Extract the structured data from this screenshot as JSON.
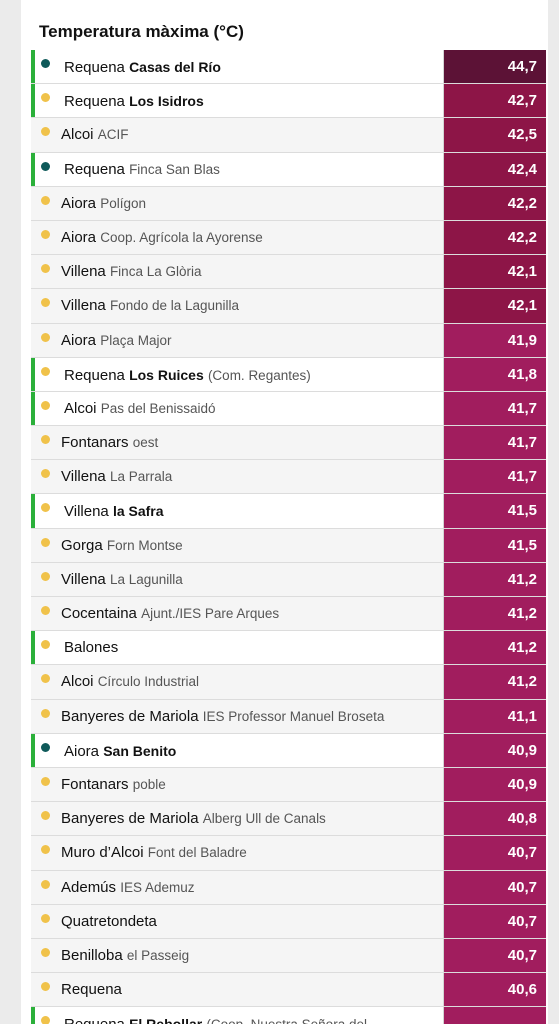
{
  "title": "Temperatura màxima (°C)",
  "colors": {
    "highlight_bar": "#2bb03a",
    "dot_yellow": "#f0c24a",
    "dot_teal": "#0f5a5a",
    "value_dark": "#5c1236",
    "value_mid": "#8d1547",
    "value_light": "#a11d5e"
  },
  "rows": [
    {
      "place": "Requena",
      "station": "Casas del Río",
      "station_bold": true,
      "extra": "",
      "value": "44,7",
      "highlight": true,
      "dot": "teal",
      "shade": "dark"
    },
    {
      "place": "Requena",
      "station": "Los Isidros",
      "station_bold": true,
      "extra": "",
      "value": "42,7",
      "highlight": true,
      "dot": "yellow",
      "shade": "mid"
    },
    {
      "place": "Alcoi",
      "station": "ACIF",
      "station_bold": false,
      "extra": "",
      "value": "42,5",
      "highlight": false,
      "dot": "yellow",
      "shade": "mid"
    },
    {
      "place": "Requena",
      "station": "Finca San Blas",
      "station_bold": false,
      "extra": "",
      "value": "42,4",
      "highlight": true,
      "dot": "teal",
      "shade": "mid"
    },
    {
      "place": "Aiora",
      "station": "Polígon",
      "station_bold": false,
      "extra": "",
      "value": "42,2",
      "highlight": false,
      "dot": "yellow",
      "shade": "mid"
    },
    {
      "place": "Aiora",
      "station": "Coop. Agrícola la Ayorense",
      "station_bold": false,
      "extra": "",
      "value": "42,2",
      "highlight": false,
      "dot": "yellow",
      "shade": "mid"
    },
    {
      "place": "Villena",
      "station": "Finca La Glòria",
      "station_bold": false,
      "extra": "",
      "value": "42,1",
      "highlight": false,
      "dot": "yellow",
      "shade": "mid"
    },
    {
      "place": "Villena",
      "station": "Fondo de la Lagunilla",
      "station_bold": false,
      "extra": "",
      "value": "42,1",
      "highlight": false,
      "dot": "yellow",
      "shade": "mid"
    },
    {
      "place": "Aiora",
      "station": "Plaça Major",
      "station_bold": false,
      "extra": "",
      "value": "41,9",
      "highlight": false,
      "dot": "yellow",
      "shade": "light"
    },
    {
      "place": "Requena",
      "station": "Los Ruices",
      "station_bold": true,
      "extra": "(Com. Regantes)",
      "value": "41,8",
      "highlight": true,
      "dot": "yellow",
      "shade": "light"
    },
    {
      "place": "Alcoi",
      "station": "Pas del Benissaidó",
      "station_bold": false,
      "extra": "",
      "value": "41,7",
      "highlight": true,
      "dot": "yellow",
      "shade": "light"
    },
    {
      "place": "Fontanars",
      "station": "oest",
      "station_bold": false,
      "extra": "",
      "value": "41,7",
      "highlight": false,
      "dot": "yellow",
      "shade": "light"
    },
    {
      "place": "Villena",
      "station": "La Parrala",
      "station_bold": false,
      "extra": "",
      "value": "41,7",
      "highlight": false,
      "dot": "yellow",
      "shade": "light"
    },
    {
      "place": "Villena",
      "station": "la Safra",
      "station_bold": true,
      "extra": "",
      "value": "41,5",
      "highlight": true,
      "dot": "yellow",
      "shade": "light"
    },
    {
      "place": "Gorga",
      "station": "Forn Montse",
      "station_bold": false,
      "extra": "",
      "value": "41,5",
      "highlight": false,
      "dot": "yellow",
      "shade": "light"
    },
    {
      "place": "Villena",
      "station": "La Lagunilla",
      "station_bold": false,
      "extra": "",
      "value": "41,2",
      "highlight": false,
      "dot": "yellow",
      "shade": "light"
    },
    {
      "place": "Cocentaina",
      "station": "Ajunt./IES Pare Arques",
      "station_bold": false,
      "extra": "",
      "value": "41,2",
      "highlight": false,
      "dot": "yellow",
      "shade": "light"
    },
    {
      "place": "Balones",
      "station": "",
      "station_bold": false,
      "extra": "",
      "value": "41,2",
      "highlight": true,
      "dot": "yellow",
      "shade": "light"
    },
    {
      "place": "Alcoi",
      "station": "Círculo Industrial",
      "station_bold": false,
      "extra": "",
      "value": "41,2",
      "highlight": false,
      "dot": "yellow",
      "shade": "light"
    },
    {
      "place": "Banyeres de Mariola",
      "station": "IES Professor Manuel Broseta",
      "station_bold": false,
      "extra": "",
      "value": "41,1",
      "highlight": false,
      "dot": "yellow",
      "shade": "light"
    },
    {
      "place": "Aiora",
      "station": "San Benito",
      "station_bold": true,
      "extra": "",
      "value": "40,9",
      "highlight": true,
      "dot": "teal",
      "shade": "light"
    },
    {
      "place": "Fontanars",
      "station": "poble",
      "station_bold": false,
      "extra": "",
      "value": "40,9",
      "highlight": false,
      "dot": "yellow",
      "shade": "light"
    },
    {
      "place": "Banyeres de Mariola",
      "station": "Alberg Ull de Canals",
      "station_bold": false,
      "extra": "",
      "value": "40,8",
      "highlight": false,
      "dot": "yellow",
      "shade": "light"
    },
    {
      "place": "Muro d’Alcoi",
      "station": "Font del Baladre",
      "station_bold": false,
      "extra": "",
      "value": "40,7",
      "highlight": false,
      "dot": "yellow",
      "shade": "light"
    },
    {
      "place": "Ademús",
      "station": "IES Ademuz",
      "station_bold": false,
      "extra": "",
      "value": "40,7",
      "highlight": false,
      "dot": "yellow",
      "shade": "light"
    },
    {
      "place": "Quatretondeta",
      "station": "",
      "station_bold": false,
      "extra": "",
      "value": "40,7",
      "highlight": false,
      "dot": "yellow",
      "shade": "light"
    },
    {
      "place": "Benilloba",
      "station": "el Passeig",
      "station_bold": false,
      "extra": "",
      "value": "40,7",
      "highlight": false,
      "dot": "yellow",
      "shade": "light"
    },
    {
      "place": "Requena",
      "station": "",
      "station_bold": false,
      "extra": "",
      "value": "40,6",
      "highlight": false,
      "dot": "yellow",
      "shade": "light"
    },
    {
      "place": "Requena",
      "station": "El Rebollar",
      "station_bold": true,
      "extra": "(Coop. Nuestra Señora del",
      "value": "",
      "highlight": true,
      "dot": "yellow",
      "shade": "light"
    }
  ]
}
